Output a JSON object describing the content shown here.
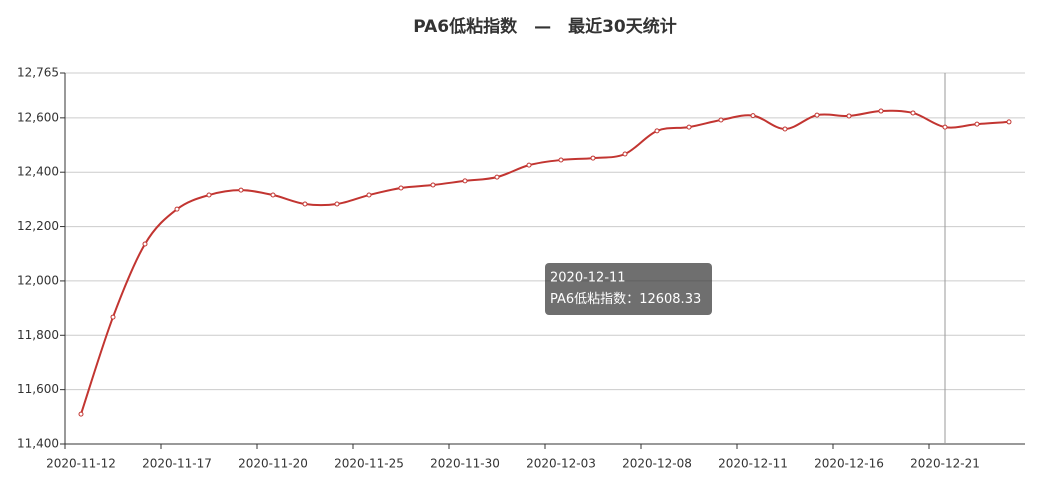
{
  "chart_data": {
    "type": "line",
    "title": "PA6低粘指数　—　最近30天统计",
    "categories": [
      "2020-11-12",
      null,
      null,
      "2020-11-17",
      null,
      null,
      "2020-11-20",
      null,
      null,
      "2020-11-25",
      null,
      null,
      "2020-11-30",
      null,
      null,
      "2020-12-03",
      null,
      null,
      "2020-12-08",
      null,
      null,
      "2020-12-11",
      null,
      null,
      "2020-12-16",
      null,
      null,
      "2020-12-21",
      null,
      null
    ],
    "series": [
      {
        "name": "PA6低粘指数",
        "color": "#c23531",
        "values": [
          11510,
          11867,
          12136,
          12264,
          12316,
          12334,
          12316,
          12283,
          12283,
          12316,
          12342,
          12353,
          12368,
          12382,
          12426,
          12445,
          12452,
          12467,
          12552,
          12566,
          12592,
          12608.33,
          12559,
          12610,
          12607,
          12625,
          12618,
          12566,
          12577,
          12585
        ]
      }
    ],
    "ylim": [
      11400,
      12765
    ],
    "yticks": [
      {
        "value": 11400,
        "label": "11,400"
      },
      {
        "value": 11600,
        "label": "11,600"
      },
      {
        "value": 11800,
        "label": "11,800"
      },
      {
        "value": 12000,
        "label": "12,000"
      },
      {
        "value": 12200,
        "label": "12,200"
      },
      {
        "value": 12400,
        "label": "12,400"
      },
      {
        "value": 12600,
        "label": "12,600"
      },
      {
        "value": 12765,
        "label": "12,765"
      }
    ],
    "grid": true,
    "smooth": true,
    "tooltip": {
      "separator": "："
    }
  }
}
